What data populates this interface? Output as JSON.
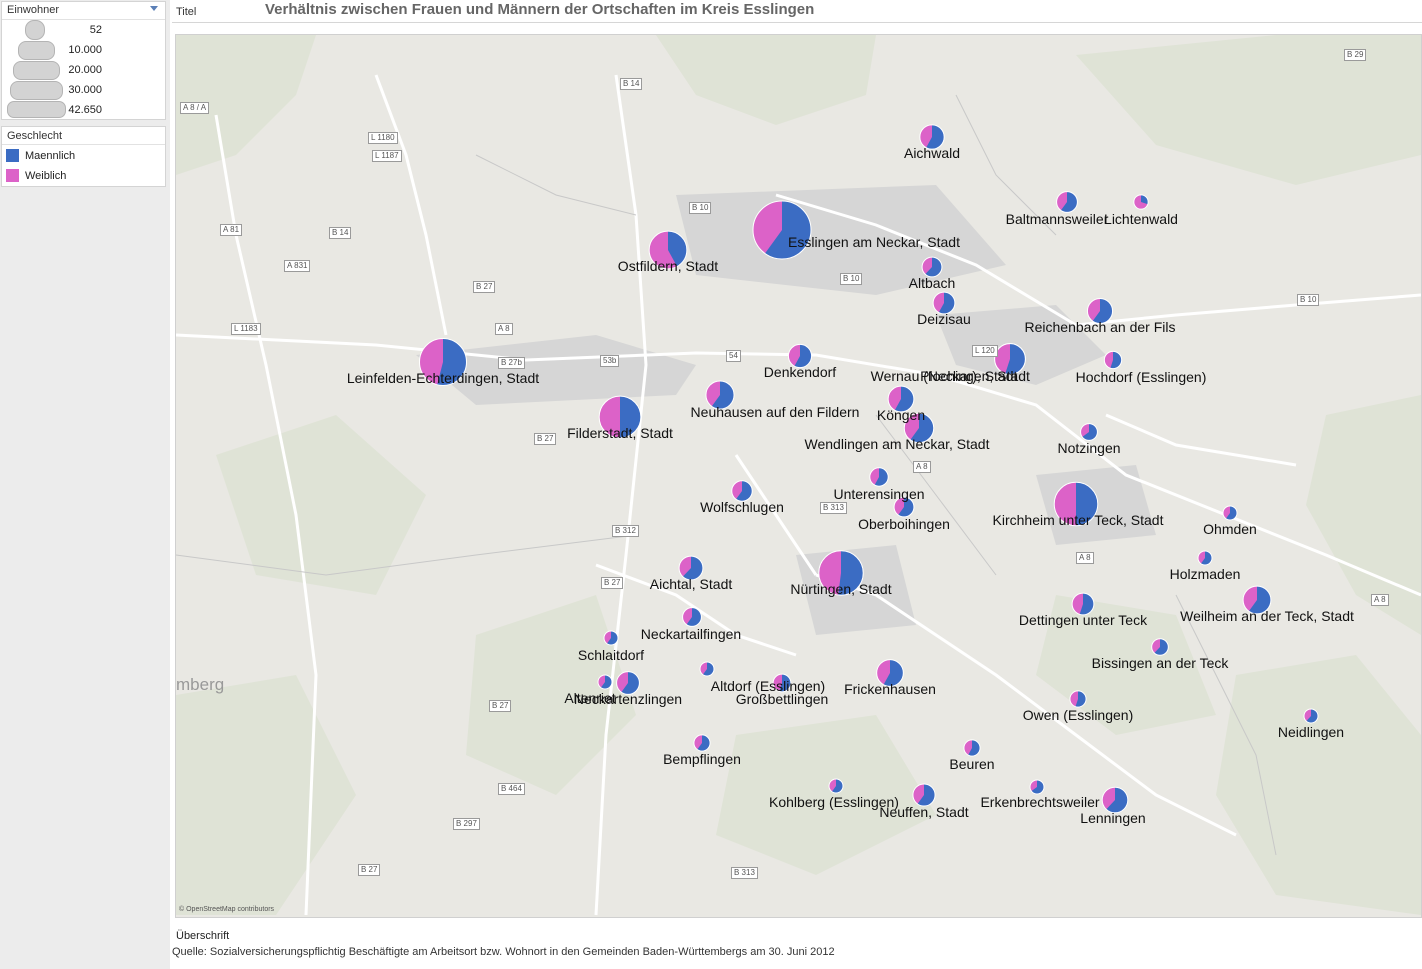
{
  "header": {
    "title_label": "Titel",
    "title": "Verhältnis zwischen Frauen und Männern der Ortschaften im Kreis Esslingen"
  },
  "legend_size": {
    "title": "Einwohner",
    "items": [
      {
        "label": "52",
        "value": 52
      },
      {
        "label": "10.000",
        "value": 10000
      },
      {
        "label": "20.000",
        "value": 20000
      },
      {
        "label": "30.000",
        "value": 30000
      },
      {
        "label": "42.650",
        "value": 42650
      }
    ]
  },
  "legend_color": {
    "title": "Geschlecht",
    "items": [
      {
        "label": "Maennlich",
        "color": "#3b6cc3"
      },
      {
        "label": "Weiblich",
        "color": "#dc62c8"
      }
    ]
  },
  "map": {
    "city_fragment": "mberg",
    "credit": "© OpenStreetMap contributors",
    "road_labels": [
      "B 29",
      "A 8 / A",
      "B 14",
      "L 1180",
      "L 1187",
      "B 10",
      "A 81",
      "B 14",
      "A 831",
      "B 27",
      "L 1183",
      "A 8",
      "B 27b",
      "53b",
      "54",
      "B 10",
      "L 120",
      "B 10",
      "B 27",
      "A 8",
      "B 313",
      "B 312",
      "B 27",
      "A 8",
      "A 8",
      "B 27",
      "B 464",
      "B 297",
      "B 313",
      "B 27"
    ]
  },
  "towns": [
    {
      "name": "Aichwald",
      "population": 7500,
      "male_share": 0.58
    },
    {
      "name": "Baltmannsweiler",
      "population": 5500,
      "male_share": 0.6
    },
    {
      "name": "Lichtenwald",
      "population": 2600,
      "male_share": 0.3
    },
    {
      "name": "Esslingen am Neckar, Stadt",
      "population": 42650,
      "male_share": 0.6
    },
    {
      "name": "Ostfildern, Stadt",
      "population": 18000,
      "male_share": 0.42
    },
    {
      "name": "Altbach",
      "population": 5000,
      "male_share": 0.62
    },
    {
      "name": "Deizisau",
      "population": 6000,
      "male_share": 0.58
    },
    {
      "name": "Reichenbach an der Fils",
      "population": 8000,
      "male_share": 0.6
    },
    {
      "name": "Leinfelden-Echterdingen, Stadt",
      "population": 28000,
      "male_share": 0.54
    },
    {
      "name": "Denkendorf",
      "population": 6800,
      "male_share": 0.58
    },
    {
      "name": "Plochingen, Stadt",
      "population": 12000,
      "male_share": 0.6
    },
    {
      "name": "Wernau (Neckar), Stadt",
      "population": 12000,
      "male_share": 0.55
    },
    {
      "name": "Hochdorf (Esslingen)",
      "population": 3800,
      "male_share": 0.55
    },
    {
      "name": "Neuhausen auf den Fildern",
      "population": 10000,
      "male_share": 0.6
    },
    {
      "name": "Filderstadt, Stadt",
      "population": 22000,
      "male_share": 0.5
    },
    {
      "name": "Köngen",
      "population": 8400,
      "male_share": 0.58
    },
    {
      "name": "Wendlingen am Neckar, Stadt",
      "population": 11000,
      "male_share": 0.6
    },
    {
      "name": "Notzingen",
      "population": 3600,
      "male_share": 0.65
    },
    {
      "name": "Unterensingen",
      "population": 4300,
      "male_share": 0.58
    },
    {
      "name": "Oberboihingen",
      "population": 5000,
      "male_share": 0.6
    },
    {
      "name": "Wolfschlugen",
      "population": 5300,
      "male_share": 0.6
    },
    {
      "name": "Kirchheim unter Teck, Stadt",
      "population": 24000,
      "male_share": 0.5
    },
    {
      "name": "Ohmden",
      "population": 1700,
      "male_share": 0.6
    },
    {
      "name": "Aichtal, Stadt",
      "population": 7200,
      "male_share": 0.62
    },
    {
      "name": "Nürtingen, Stadt",
      "population": 25000,
      "male_share": 0.52
    },
    {
      "name": "Holzmaden",
      "population": 2200,
      "male_share": 0.6
    },
    {
      "name": "Neckartailfingen",
      "population": 4500,
      "male_share": 0.6
    },
    {
      "name": "Dettingen unter Teck",
      "population": 6000,
      "male_share": 0.55
    },
    {
      "name": "Weilheim an der Teck, Stadt",
      "population": 9800,
      "male_share": 0.6
    },
    {
      "name": "Schlaitdorf",
      "population": 1700,
      "male_share": 0.6
    },
    {
      "name": "Bissingen an der Teck",
      "population": 3500,
      "male_share": 0.62
    },
    {
      "name": "Altdorf (Esslingen)",
      "population": 1500,
      "male_share": 0.6
    },
    {
      "name": "Neckartenzlingen",
      "population": 6600,
      "male_share": 0.6
    },
    {
      "name": "Altenriet",
      "population": 1800,
      "male_share": 0.6
    },
    {
      "name": "Großbettlingen",
      "population": 4000,
      "male_share": 0.55
    },
    {
      "name": "Frickenhausen",
      "population": 9000,
      "male_share": 0.58
    },
    {
      "name": "Owen (Esslingen)",
      "population": 3300,
      "male_share": 0.55
    },
    {
      "name": "Neidlingen",
      "population": 1800,
      "male_share": 0.62
    },
    {
      "name": "Bempflingen",
      "population": 3300,
      "male_share": 0.6
    },
    {
      "name": "Beuren",
      "population": 3300,
      "male_share": 0.58
    },
    {
      "name": "Kohlberg (Esslingen)",
      "population": 2300,
      "male_share": 0.6
    },
    {
      "name": "Neuffen, Stadt",
      "population": 6200,
      "male_share": 0.6
    },
    {
      "name": "Erkenbrechtsweiler",
      "population": 2000,
      "male_share": 0.65
    },
    {
      "name": "Lenningen",
      "population": 8300,
      "male_share": 0.62
    }
  ],
  "footer": {
    "title": "Überschrift",
    "source": "Quelle: Sozialversicherungspflichtig Beschäftigte am Arbeitsort bzw. Wohnort in den Gemeinden Baden-Württembergs am 30. Juni 2012"
  }
}
